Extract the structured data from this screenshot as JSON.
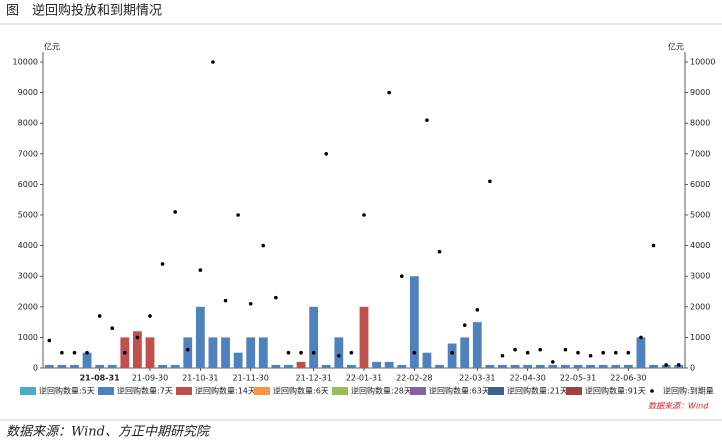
{
  "chart_data": {
    "type": "bar",
    "title": "图　逆回购投放和到期情况",
    "y_unit": "亿元",
    "y2_unit": "亿元",
    "categories": [
      null,
      null,
      null,
      null,
      "21-08-31",
      null,
      null,
      null,
      "21-09-30",
      null,
      null,
      null,
      "21-10-31",
      null,
      null,
      null,
      "21-11-30",
      null,
      null,
      null,
      null,
      "21-12-31",
      null,
      null,
      null,
      "22-01-31",
      null,
      null,
      null,
      "22-02-28",
      null,
      null,
      null,
      null,
      "22-03-31",
      null,
      null,
      null,
      "22-04-30",
      null,
      null,
      null,
      "22-05-31",
      null,
      null,
      null,
      "22-06-30",
      null,
      null,
      null,
      null
    ],
    "ylim": [
      0,
      10000
    ],
    "yticks": [
      0,
      1000,
      2000,
      3000,
      4000,
      5000,
      6000,
      7000,
      8000,
      9000,
      10000
    ],
    "y2lim": [
      0,
      10000
    ],
    "y2ticks": [
      0,
      1000,
      2000,
      3000,
      4000,
      5000,
      6000,
      7000,
      8000,
      9000,
      10000
    ],
    "stacked": true,
    "series": [
      {
        "name": "逆回购数量:5天",
        "color": "#4bacc6",
        "values": [
          0,
          0,
          0,
          0,
          0,
          0,
          0,
          0,
          0,
          0,
          0,
          0,
          0,
          0,
          0,
          0,
          0,
          0,
          0,
          0,
          0,
          0,
          0,
          0,
          0,
          0,
          0,
          0,
          0,
          0,
          0,
          0,
          0,
          0,
          0,
          0,
          0,
          0,
          0,
          0,
          0,
          0,
          0,
          0,
          0,
          0,
          0,
          0,
          0,
          0,
          0
        ]
      },
      {
        "name": "逆回购数量:7天",
        "color": "#4f81bd",
        "values": [
          100,
          100,
          100,
          500,
          100,
          100,
          0,
          0,
          0,
          100,
          100,
          1000,
          2000,
          1000,
          1000,
          500,
          1000,
          1000,
          100,
          100,
          0,
          2000,
          100,
          1000,
          100,
          0,
          200,
          200,
          100,
          3000,
          500,
          100,
          800,
          1000,
          1500,
          100,
          100,
          100,
          100,
          100,
          100,
          100,
          100,
          100,
          100,
          100,
          100,
          1000,
          100,
          100,
          100
        ]
      },
      {
        "name": "逆回购数量:14天",
        "color": "#c0504d",
        "values": [
          0,
          0,
          0,
          0,
          0,
          0,
          1000,
          1200,
          1000,
          0,
          0,
          0,
          0,
          0,
          0,
          0,
          0,
          0,
          0,
          0,
          200,
          0,
          0,
          0,
          0,
          2000,
          0,
          0,
          0,
          0,
          0,
          0,
          0,
          0,
          0,
          0,
          0,
          0,
          0,
          0,
          0,
          0,
          0,
          0,
          0,
          0,
          0,
          0,
          0,
          0,
          0
        ]
      },
      {
        "name": "逆回购数量:6天",
        "color": "#f79646",
        "values": [
          0,
          0,
          0,
          0,
          0,
          0,
          0,
          0,
          0,
          0,
          0,
          0,
          0,
          0,
          0,
          0,
          0,
          0,
          0,
          0,
          0,
          0,
          0,
          0,
          0,
          0,
          0,
          0,
          0,
          0,
          0,
          0,
          0,
          0,
          0,
          0,
          0,
          0,
          0,
          0,
          0,
          0,
          0,
          0,
          0,
          0,
          0,
          0,
          0,
          0,
          0
        ]
      },
      {
        "name": "逆回购数量:28天",
        "color": "#9bbb59",
        "values": [
          0,
          0,
          0,
          0,
          0,
          0,
          0,
          0,
          0,
          0,
          0,
          0,
          0,
          0,
          0,
          0,
          0,
          0,
          0,
          0,
          0,
          0,
          0,
          0,
          0,
          0,
          0,
          0,
          0,
          0,
          0,
          0,
          0,
          0,
          0,
          0,
          0,
          0,
          0,
          0,
          0,
          0,
          0,
          0,
          0,
          0,
          0,
          0,
          0,
          0,
          0
        ]
      },
      {
        "name": "逆回购数量:63天",
        "color": "#8064a2",
        "values": [
          0,
          0,
          0,
          0,
          0,
          0,
          0,
          0,
          0,
          0,
          0,
          0,
          0,
          0,
          0,
          0,
          0,
          0,
          0,
          0,
          0,
          0,
          0,
          0,
          0,
          0,
          0,
          0,
          0,
          0,
          0,
          0,
          0,
          0,
          0,
          0,
          0,
          0,
          0,
          0,
          0,
          0,
          0,
          0,
          0,
          0,
          0,
          0,
          0,
          0,
          0
        ]
      },
      {
        "name": "逆回购数量:21天",
        "color": "#3f5f8f",
        "values": [
          0,
          0,
          0,
          0,
          0,
          0,
          0,
          0,
          0,
          0,
          0,
          0,
          0,
          0,
          0,
          0,
          0,
          0,
          0,
          0,
          0,
          0,
          0,
          0,
          0,
          0,
          0,
          0,
          0,
          0,
          0,
          0,
          0,
          0,
          0,
          0,
          0,
          0,
          0,
          0,
          0,
          0,
          0,
          0,
          0,
          0,
          0,
          0,
          0,
          0,
          0
        ]
      },
      {
        "name": "逆回购数量:91天",
        "color": "#a0413c",
        "values": [
          0,
          0,
          0,
          0,
          0,
          0,
          0,
          0,
          0,
          0,
          0,
          0,
          0,
          0,
          0,
          0,
          0,
          0,
          0,
          0,
          0,
          0,
          0,
          0,
          0,
          0,
          0,
          0,
          0,
          0,
          0,
          0,
          0,
          0,
          0,
          0,
          0,
          0,
          0,
          0,
          0,
          0,
          0,
          0,
          0,
          0,
          0,
          0,
          0,
          0,
          0
        ]
      },
      {
        "name": "逆回购:到期量",
        "color": "#000000",
        "type": "scatter",
        "axis": "y2",
        "values": [
          900,
          500,
          500,
          500,
          1700,
          1300,
          500,
          1000,
          1700,
          3400,
          5100,
          600,
          3200,
          10000,
          2200,
          5000,
          2100,
          4000,
          2300,
          500,
          500,
          500,
          7000,
          400,
          500,
          5000,
          null,
          9000,
          3000,
          500,
          8100,
          3800,
          500,
          1400,
          1900,
          6100,
          400,
          600,
          500,
          600,
          200,
          600,
          500,
          400,
          500,
          500,
          500,
          1000,
          4000,
          100,
          100
        ]
      }
    ],
    "source_note": "数据来源：Wind"
  },
  "footer": "数据来源：Wind、方正中期研究院"
}
